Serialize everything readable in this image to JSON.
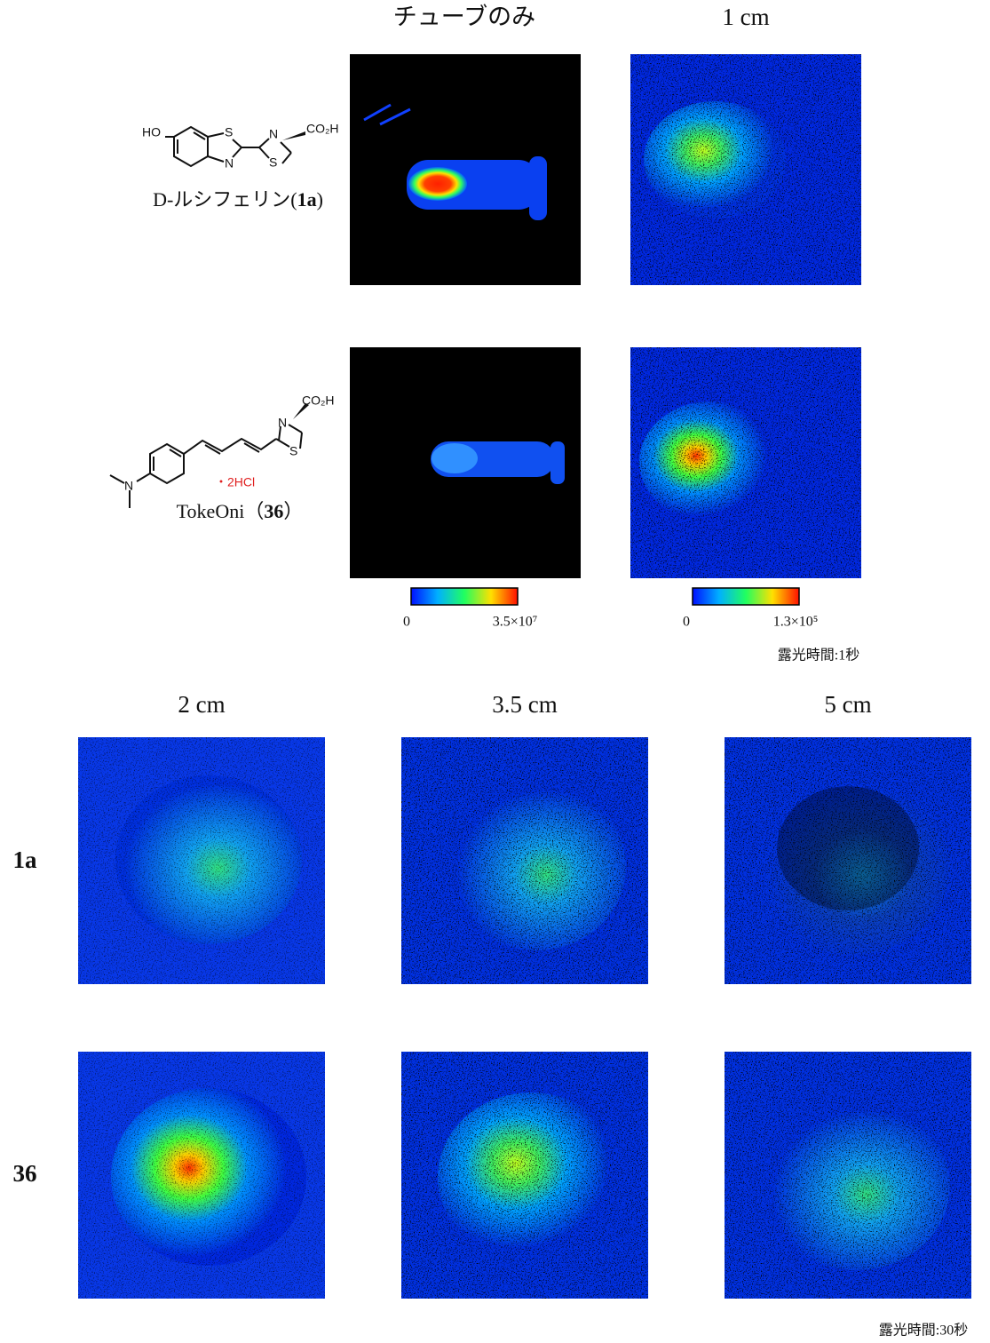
{
  "header": {
    "tube_only": "チューブのみ",
    "distance_1cm": "1 cm"
  },
  "compounds": [
    {
      "name": "D-ルシフェリン(",
      "id": "1a",
      "close": ")",
      "atoms": [
        "HO",
        "S",
        "N",
        "N",
        "S",
        "CO₂H"
      ]
    },
    {
      "name": "TokeOni（",
      "id": "36",
      "close": "）",
      "salt": "・2HCl",
      "atoms": [
        "N",
        "N",
        "S",
        "CO₂H"
      ]
    }
  ],
  "colorbars": [
    {
      "min": "0",
      "max": "3.5×10⁷"
    },
    {
      "min": "0",
      "max": "1.3×10⁵"
    }
  ],
  "exposure_top": "露光時間:1秒",
  "distances": [
    "2 cm",
    "3.5 cm",
    "5 cm"
  ],
  "row_labels": [
    "1a",
    "36"
  ],
  "exposure_bottom": "露光時間:30秒"
}
